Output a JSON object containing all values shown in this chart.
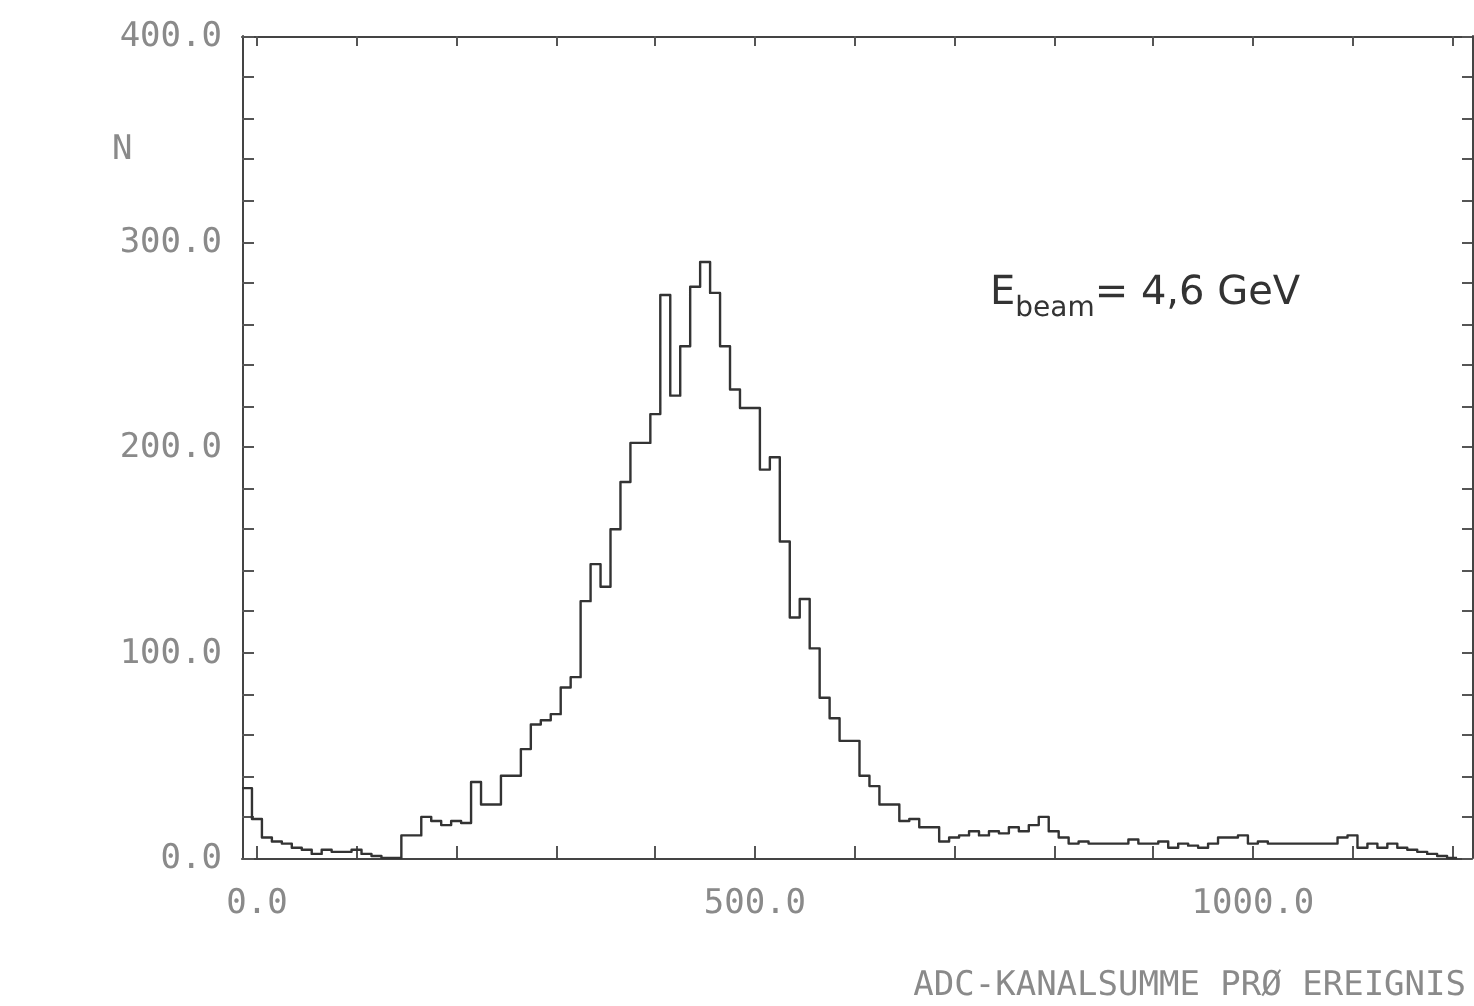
{
  "chart_data": {
    "type": "histogram",
    "xlabel": "ADC-KANALSUMME PRØ EREIGNIS",
    "ylabel": "N",
    "annotations": [
      "E$_{beam}$= 4,6 GeV"
    ],
    "bins": [
      -15,
      -5,
      5,
      15,
      25,
      35,
      45,
      55,
      65,
      75,
      85,
      95,
      105,
      115,
      125,
      135,
      145,
      155,
      165,
      175,
      185,
      195,
      205,
      215,
      225,
      235,
      245,
      255,
      265,
      275,
      285,
      295,
      305,
      315,
      325,
      335,
      345,
      355,
      365,
      375,
      385,
      395,
      405,
      415,
      425,
      435,
      445,
      455,
      465,
      475,
      485,
      495,
      505,
      515,
      525,
      535,
      545,
      555,
      565,
      575,
      585,
      595,
      605,
      615,
      625,
      635,
      645,
      655,
      665,
      675,
      685,
      695,
      705,
      715,
      725,
      735,
      745,
      755,
      765,
      775,
      785,
      795,
      805,
      815,
      825,
      835,
      845,
      855,
      865,
      875,
      885,
      895,
      905,
      915,
      925,
      935,
      945,
      955,
      965,
      975,
      985,
      995,
      1005,
      1015,
      1025,
      1035,
      1045,
      1055,
      1065,
      1075,
      1085,
      1095,
      1105,
      1115,
      1125,
      1135,
      1145,
      1155,
      1165,
      1175,
      1185,
      1195,
      1205
    ],
    "values": [
      34,
      19,
      10,
      8,
      7,
      5,
      4,
      2,
      4,
      3,
      3,
      4,
      2,
      1,
      0,
      0,
      11,
      11,
      20,
      18,
      16,
      18,
      17,
      37,
      26,
      26,
      40,
      40,
      53,
      65,
      67,
      70,
      83,
      88,
      125,
      143,
      132,
      160,
      183,
      202,
      202,
      216,
      274,
      225,
      249,
      278,
      290,
      275,
      249,
      228,
      219,
      219,
      189,
      195,
      154,
      117,
      126,
      102,
      78,
      68,
      57,
      57,
      40,
      35,
      26,
      26,
      18,
      19,
      15,
      15,
      8,
      10,
      11,
      13,
      11,
      13,
      12,
      15,
      13,
      16,
      20,
      13,
      10,
      7,
      8,
      7,
      7,
      7,
      7,
      9,
      7,
      7,
      8,
      5,
      7,
      6,
      5,
      7,
      10,
      10,
      11,
      7,
      8,
      7,
      7,
      7,
      7,
      7,
      7,
      7,
      10,
      11,
      5,
      7,
      5,
      7,
      5,
      4,
      3,
      2,
      1,
      0
    ],
    "color": "#333333",
    "xlim": [
      -15,
      1220
    ],
    "ylim": [
      0,
      400
    ],
    "xticks": [
      {
        "value": 0,
        "label": "0.0"
      },
      {
        "value": 100,
        "label": null
      },
      {
        "value": 200,
        "label": null
      },
      {
        "value": 300,
        "label": null
      },
      {
        "value": 400,
        "label": null
      },
      {
        "value": 500,
        "label": "500.0"
      },
      {
        "value": 600,
        "label": null
      },
      {
        "value": 700,
        "label": null
      },
      {
        "value": 800,
        "label": null
      },
      {
        "value": 900,
        "label": null
      },
      {
        "value": 1000,
        "label": "1000.0"
      },
      {
        "value": 1100,
        "label": null
      },
      {
        "value": 1200,
        "label": null
      }
    ],
    "yticks": [
      {
        "value": 0,
        "label": "0.0"
      },
      {
        "value": 20,
        "label": null
      },
      {
        "value": 40,
        "label": null
      },
      {
        "value": 60,
        "label": null
      },
      {
        "value": 80,
        "label": null
      },
      {
        "value": 100,
        "label": "100.0"
      },
      {
        "value": 120,
        "label": null
      },
      {
        "value": 140,
        "label": null
      },
      {
        "value": 160,
        "label": null
      },
      {
        "value": 180,
        "label": null
      },
      {
        "value": 200,
        "label": "200.0"
      },
      {
        "value": 220,
        "label": null
      },
      {
        "value": 240,
        "label": null
      },
      {
        "value": 260,
        "label": null
      },
      {
        "value": 280,
        "label": null
      },
      {
        "value": 300,
        "label": "300.0"
      },
      {
        "value": 320,
        "label": null
      },
      {
        "value": 340,
        "label": null
      },
      {
        "value": 360,
        "label": null
      },
      {
        "value": 380,
        "label": null
      },
      {
        "value": 400,
        "label": "400.0"
      }
    ],
    "grid": false
  }
}
